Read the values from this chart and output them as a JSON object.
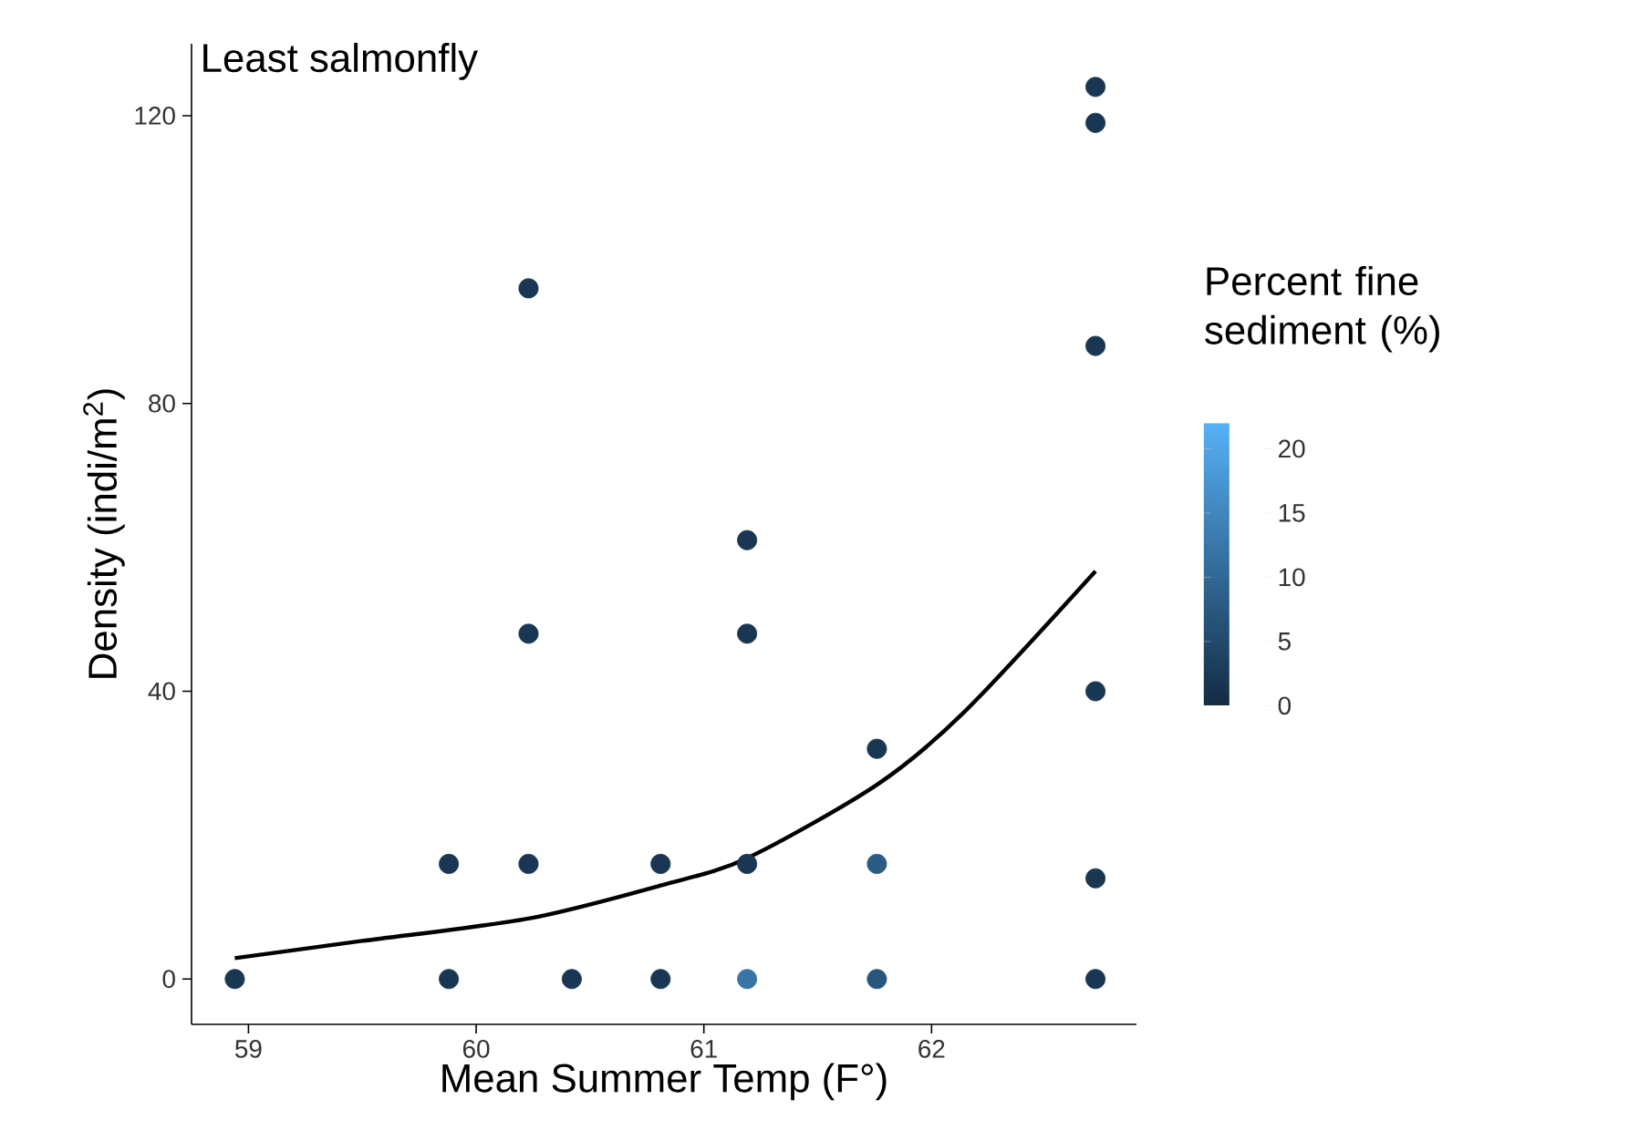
{
  "chart_data": {
    "type": "scatter",
    "title": "Least salmonfly",
    "xlabel": "Mean Summer Temp (F°)",
    "ylabel": "Density (indi/m$^{2}$)",
    "clabel": "Percent fine sediment (%)",
    "xlim": [
      58.75,
      62.9
    ],
    "ylim": [
      -6.3,
      130
    ],
    "xticks": [
      59,
      60,
      61,
      62
    ],
    "yticks": [
      0,
      40,
      80,
      120
    ],
    "clim": [
      0,
      22
    ],
    "cticks": [
      0,
      5,
      10,
      15,
      20
    ],
    "series": [
      {
        "marker": "circle",
        "colors": [
          "#193753",
          "#193753",
          "#193753",
          "#193753",
          "#193753",
          "#193753",
          "#193753",
          "#193753",
          "#193753",
          "#3874a5",
          "#193753",
          "#193753",
          "#193753",
          "#28567c",
          "#2b5c85",
          "#193753",
          "#193753",
          "#193753",
          "#193753",
          "#193753",
          "#193753",
          "#193753"
        ],
        "x": [
          58.94,
          59.88,
          59.88,
          60.23,
          60.23,
          60.23,
          60.42,
          60.81,
          60.81,
          61.19,
          61.19,
          61.19,
          61.19,
          61.76,
          61.76,
          61.76,
          62.72,
          62.72,
          62.72,
          62.72,
          62.72,
          62.72
        ],
        "values": [
          0,
          0,
          16,
          16,
          48,
          96,
          0,
          0,
          16,
          0,
          16,
          48,
          61,
          0,
          16,
          32,
          0,
          14,
          40,
          88,
          119,
          124
        ],
        "cvalues": [
          2,
          2,
          2,
          2,
          2,
          2,
          2,
          2,
          2,
          12,
          2,
          2,
          2,
          7,
          8,
          2,
          2,
          2,
          2,
          2,
          2,
          2
        ]
      },
      {
        "type": "line",
        "color": "#000000",
        "x": [
          58.94,
          59.5,
          60.23,
          60.81,
          61.19,
          61.76,
          62.14,
          62.72
        ],
        "values": [
          2.9,
          5.3,
          8.4,
          13,
          16.8,
          27,
          37,
          56.7
        ]
      }
    ]
  }
}
